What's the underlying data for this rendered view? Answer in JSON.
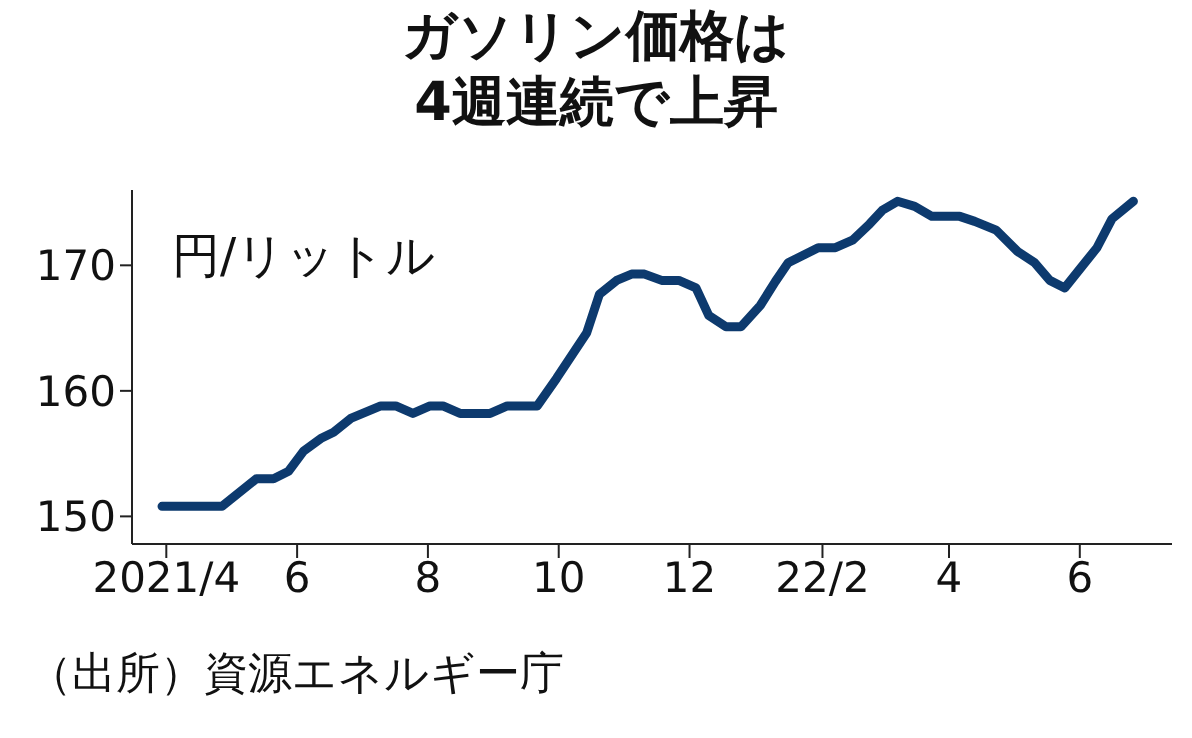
{
  "chart_data": {
    "type": "line",
    "title": "ガソリン価格は\n4週連続で上昇",
    "ylabel": "円/リットル",
    "annotations": [
      "（出所）資源エネルギー庁"
    ],
    "x": [
      "2021-03-30",
      "2021-04-27",
      "2021-05-13",
      "2021-05-21",
      "2021-05-28",
      "2021-06-04",
      "2021-06-12",
      "2021-06-18",
      "2021-06-26",
      "2021-07-10",
      "2021-07-17",
      "2021-07-25",
      "2021-08-02",
      "2021-08-08",
      "2021-08-16",
      "2021-08-30",
      "2021-09-07",
      "2021-09-21",
      "2021-09-30",
      "2021-10-14",
      "2021-10-20",
      "2021-10-28",
      "2021-11-04",
      "2021-11-10",
      "2021-11-18",
      "2021-11-26",
      "2021-12-04",
      "2021-12-10",
      "2021-12-18",
      "2021-12-25",
      "2022-01-03",
      "2022-01-10",
      "2022-01-16",
      "2022-01-30",
      "2022-02-07",
      "2022-02-15",
      "2022-02-23",
      "2022-03-01",
      "2022-03-08",
      "2022-03-16",
      "2022-03-24",
      "2022-04-06",
      "2022-04-13",
      "2022-04-23",
      "2022-05-03",
      "2022-05-11",
      "2022-05-18",
      "2022-05-25",
      "2022-06-01",
      "2022-06-09",
      "2022-06-16",
      "2022-06-26"
    ],
    "series": [
      {
        "color": "#0d3a6e",
        "values": [
          150.8,
          150.8,
          153.0,
          153.0,
          153.6,
          155.2,
          156.2,
          156.7,
          157.8,
          158.8,
          158.8,
          158.2,
          158.8,
          158.8,
          158.2,
          158.2,
          158.8,
          158.8,
          161.0,
          164.6,
          167.7,
          168.8,
          169.3,
          169.3,
          168.8,
          168.8,
          168.2,
          166.0,
          165.1,
          165.1,
          166.8,
          168.7,
          170.2,
          171.4,
          171.4,
          172.0,
          173.3,
          174.4,
          175.1,
          174.7,
          173.9,
          173.9,
          173.5,
          172.8,
          171.1,
          170.2,
          168.8,
          168.2,
          169.7,
          171.4,
          173.7,
          175.1
        ]
      }
    ],
    "xlim": [
      "2021-03-16",
      "2022-07-14"
    ],
    "xticks": [
      {
        "value": "2021-04",
        "label": "2021/4"
      },
      {
        "value": "2021-06",
        "label": "6"
      },
      {
        "value": "2021-08",
        "label": "8"
      },
      {
        "value": "2021-10",
        "label": "10"
      },
      {
        "value": "2021-12",
        "label": "12"
      },
      {
        "value": "2022-02",
        "label": "22/2"
      },
      {
        "value": "2022-04",
        "label": "4"
      },
      {
        "value": "2022-06",
        "label": "6"
      }
    ],
    "ylim": [
      147.8,
      176
    ],
    "yticks": [
      150,
      160,
      170
    ],
    "grid": false,
    "legend": false,
    "marker": "none",
    "line_style": "solid"
  }
}
